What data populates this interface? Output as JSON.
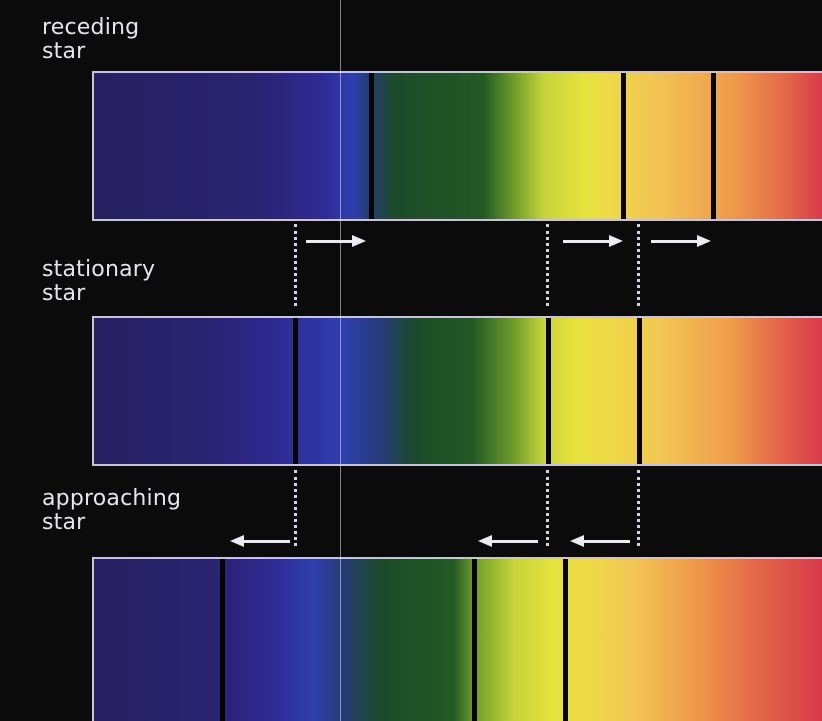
{
  "labels": {
    "receding": "receding\nstar",
    "stationary": "stationary\nstar",
    "approaching": "approaching\nstar"
  },
  "colors": {
    "background": "#0b0b0b",
    "frame": "#c9c2d8",
    "absorption_line": "#050505",
    "arrow": "#eeeaf4"
  },
  "icons": [
    "right-arrow-icon",
    "left-arrow-icon"
  ]
}
